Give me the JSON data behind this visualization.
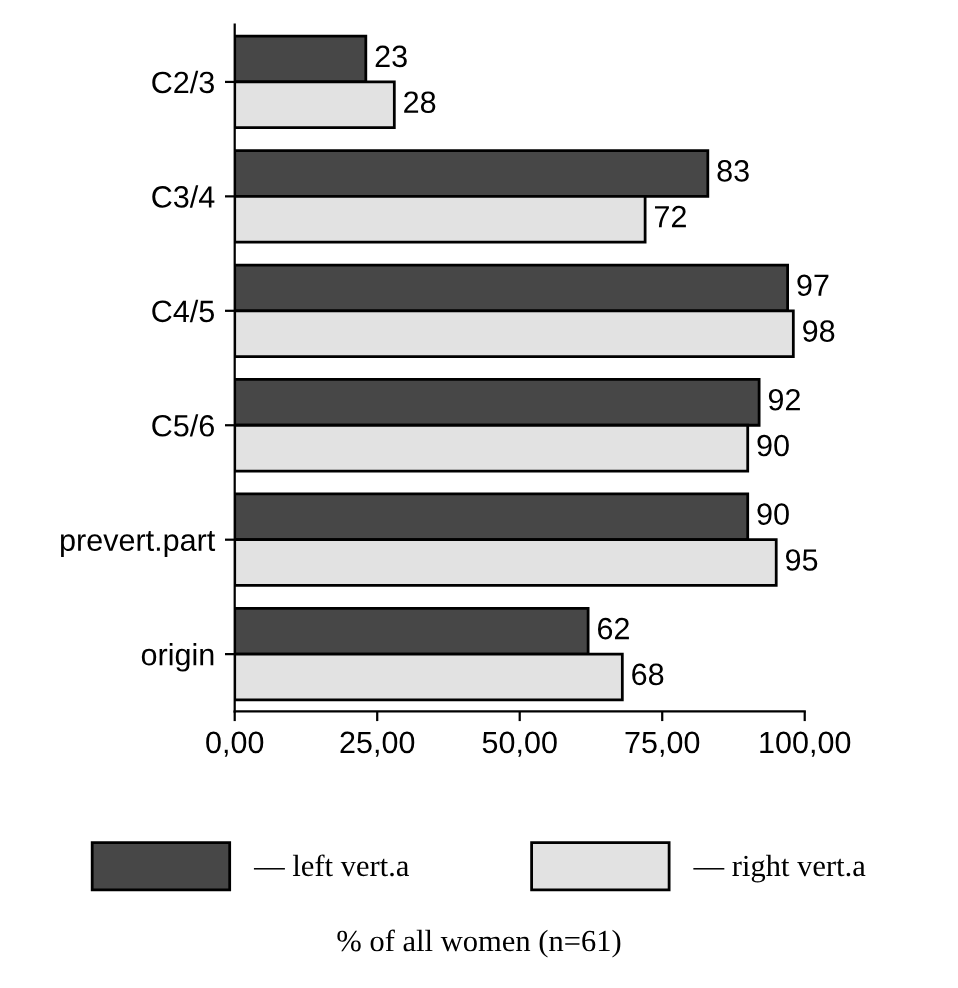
{
  "chart_data": {
    "type": "bar",
    "orientation": "horizontal",
    "annotations": [
      "% of all women (n=61)"
    ],
    "categories": [
      "C2/3",
      "C3/4",
      "C4/5",
      "C5/6",
      "prevert.part",
      "origin"
    ],
    "series": [
      {
        "name": "— left vert.a",
        "color": "#474747",
        "values": [
          23,
          83,
          97,
          92,
          90,
          62
        ]
      },
      {
        "name": "— right vert.a",
        "color": "#e2e2e2",
        "values": [
          28,
          72,
          98,
          90,
          95,
          68
        ]
      }
    ],
    "xlim": [
      0,
      100
    ],
    "xticks": [
      {
        "value": 0,
        "label": "0,00"
      },
      {
        "value": 25,
        "label": "25,00"
      },
      {
        "value": 50,
        "label": "50,00"
      },
      {
        "value": 75,
        "label": "75,00"
      },
      {
        "value": 100,
        "label": "100,00"
      }
    ],
    "data_labels": true,
    "legend": "bottom",
    "grid": false
  }
}
